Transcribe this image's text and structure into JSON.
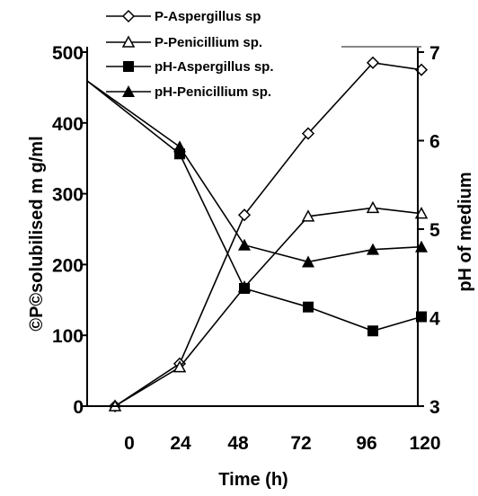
{
  "chart_data": {
    "type": "line",
    "title": "",
    "xlabel": "Time (h)",
    "ylabel_left": "©P©solubilised m g/ml",
    "ylabel_right": "pH of medium",
    "x_ticks": [
      "0",
      "24",
      "48",
      "72",
      "96",
      "120"
    ],
    "x": [
      0,
      24,
      48,
      72,
      96,
      120
    ],
    "y_left_ticks": [
      "0",
      "100",
      "200",
      "300",
      "400",
      "500"
    ],
    "y_left_range": [
      0,
      500
    ],
    "y_right_ticks": [
      "3",
      "4",
      "5",
      "6",
      "7"
    ],
    "y_right_range": [
      3,
      7
    ],
    "grid": false,
    "legend_position": "top-right",
    "series": [
      {
        "name": "P-Aspergillus sp",
        "axis": "left",
        "marker": "diamond-open",
        "values": [
          0,
          60,
          270,
          385,
          485,
          475
        ]
      },
      {
        "name": "P-Penicillium sp.",
        "axis": "left",
        "marker": "triangle-open",
        "values": [
          0,
          55,
          168,
          268,
          280,
          272
        ]
      },
      {
        "name": "pH-Aspergillus sp.",
        "axis": "right",
        "marker": "square-filled",
        "values": [
          6.5,
          5.85,
          4.33,
          4.12,
          3.85,
          4.01
        ]
      },
      {
        "name": "pH-Penicillium sp.",
        "axis": "right",
        "marker": "triangle-filled",
        "values": [
          6.5,
          5.93,
          4.82,
          4.63,
          4.77,
          4.8
        ]
      }
    ]
  }
}
